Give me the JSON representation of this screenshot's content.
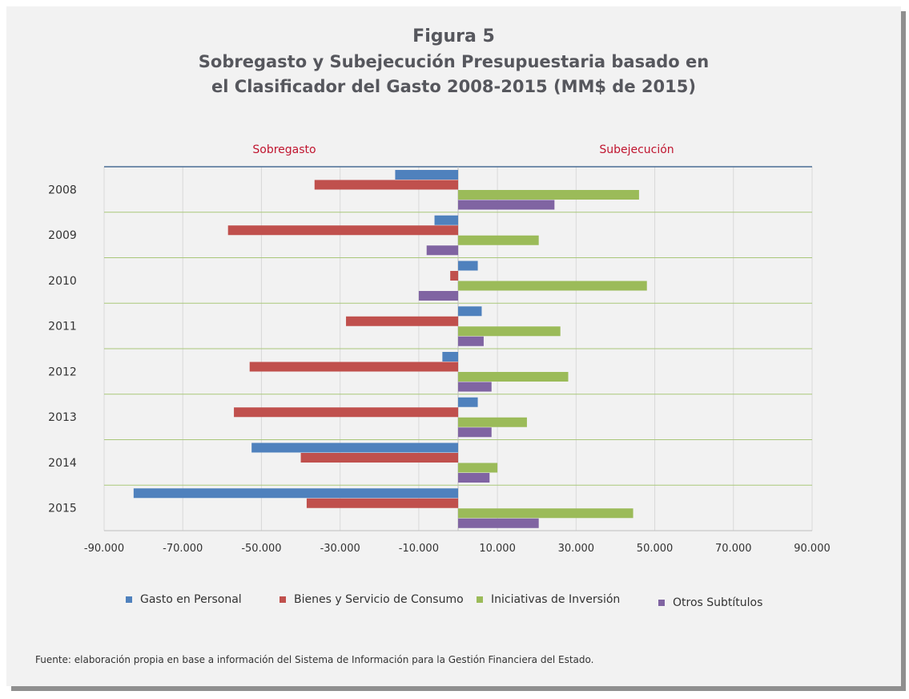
{
  "figure_label": "Figura 5",
  "title_line1": "Sobregasto y Subejecución Presupuestaria basado en",
  "title_line2": "el Clasificador del Gasto 2008-2015 (MM$ de 2015)",
  "source_note": "Fuente: elaboración propia en base a información del Sistema de Información para la Gestión Financiera del Estado.",
  "chart_data": {
    "type": "bar",
    "orientation": "horizontal",
    "categories": [
      "2008",
      "2009",
      "2010",
      "2011",
      "2012",
      "2013",
      "2014",
      "2015"
    ],
    "side_labels": {
      "left": "Sobregasto",
      "right": "Subejecución"
    },
    "xlim": [
      -90000,
      90000
    ],
    "x_ticks": [
      -90000,
      -70000,
      -50000,
      -30000,
      -10000,
      10000,
      30000,
      50000,
      70000,
      90000
    ],
    "x_tick_labels": [
      "-90.000",
      "-70.000",
      "-50.000",
      "-30.000",
      "-10.000",
      "10.000",
      "30.000",
      "50.000",
      "70.000",
      "90.000"
    ],
    "grid": true,
    "legend_position": "bottom",
    "series": [
      {
        "name": "Gasto en Personal",
        "color": "#4f81bd",
        "values": [
          -16000,
          -6000,
          5000,
          6000,
          -4000,
          5000,
          -52500,
          -82500
        ]
      },
      {
        "name": "Bienes y Servicio de Consumo",
        "color": "#c0504d",
        "values": [
          -36500,
          -58500,
          -2000,
          -28500,
          -53000,
          -57000,
          -40000,
          -38500
        ]
      },
      {
        "name": "Iniciativas de Inversión",
        "color": "#9bbb59",
        "values": [
          46000,
          20500,
          48000,
          26000,
          28000,
          17500,
          10000,
          44500
        ]
      },
      {
        "name": "Otros Subtítulos",
        "color": "#8064a2",
        "values": [
          24500,
          -8000,
          -10000,
          6500,
          8500,
          8500,
          8000,
          20500
        ]
      }
    ]
  }
}
